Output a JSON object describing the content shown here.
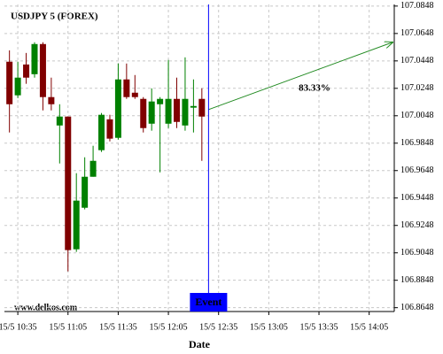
{
  "chart_data": {
    "type": "candlestick",
    "title": "USDJPY 5 (FOREX)",
    "x_label": "Date",
    "watermark": "www.delkos.com",
    "up_color": "#008000",
    "down_color": "#800000",
    "grid": true,
    "xlim": [
      627,
      860
    ],
    "ylim": [
      106.862,
      107.086
    ],
    "xticks": [
      {
        "value": 635,
        "label": "15/5 10:35"
      },
      {
        "value": 665,
        "label": "15/5 11:05"
      },
      {
        "value": 695,
        "label": "15/5 11:35"
      },
      {
        "value": 725,
        "label": "15/5 12:05"
      },
      {
        "value": 755,
        "label": "15/5 12:35"
      },
      {
        "value": 785,
        "label": "15/5 13:05"
      },
      {
        "value": 815,
        "label": "15/5 13:35"
      },
      {
        "value": 845,
        "label": "15/5 14:05"
      }
    ],
    "yticks": [
      107.0848,
      107.0648,
      107.0448,
      107.0248,
      107.0048,
      106.9848,
      106.9648,
      106.9448,
      106.9248,
      106.9048,
      106.8848,
      106.8648
    ],
    "x": [
      630,
      635,
      640,
      645,
      650,
      655,
      660,
      665,
      670,
      675,
      680,
      685,
      690,
      695,
      700,
      705,
      710,
      715,
      720,
      725,
      730,
      735,
      740,
      745
    ],
    "open": [
      107.0442,
      107.0197,
      107.0422,
      107.0351,
      107.0571,
      107.0184,
      106.9977,
      107.0042,
      106.9074,
      106.9377,
      106.9603,
      106.9797,
      107.0022,
      106.9887,
      107.0313,
      107.0216,
      107.0171,
      106.999,
      107.0132,
      106.999,
      107.0171,
      106.9977,
      107.0107,
      107.0171
    ],
    "high": [
      107.0525,
      107.0442,
      107.0506,
      107.0584,
      107.0584,
      107.0326,
      107.0132,
      107.0042,
      106.9629,
      106.9745,
      106.9829,
      107.0068,
      107.0055,
      107.0429,
      107.0429,
      107.0345,
      107.0184,
      107.0248,
      107.0184,
      107.0455,
      107.0326,
      107.0474,
      107.0313,
      107.0248
    ],
    "low": [
      106.9926,
      107.0177,
      107.0281,
      107.0326,
      107.0087,
      107.0087,
      106.97,
      106.8913,
      106.9055,
      106.9365,
      106.9603,
      106.9784,
      106.9861,
      106.9874,
      107.0171,
      107.0171,
      106.9926,
      106.9939,
      106.9635,
      106.9958,
      106.9958,
      106.9939,
      106.9926,
      106.9719
    ],
    "close": [
      107.0132,
      107.0326,
      107.0326,
      107.0571,
      107.0184,
      107.0132,
      107.0042,
      106.9068,
      106.9429,
      106.9603,
      106.9719,
      107.0055,
      106.9881,
      107.0313,
      107.0184,
      107.0184,
      106.9958,
      107.0152,
      107.0171,
      107.0171,
      107.0003,
      107.0171,
      107.0119,
      107.0042
    ],
    "event": {
      "label": "Event",
      "x": 749,
      "color": "#0000ff"
    },
    "forecast": {
      "label": "83.33%",
      "color": "#228b22",
      "x": [
        749,
        859
      ],
      "y": [
        107.0093,
        107.0584
      ]
    }
  }
}
